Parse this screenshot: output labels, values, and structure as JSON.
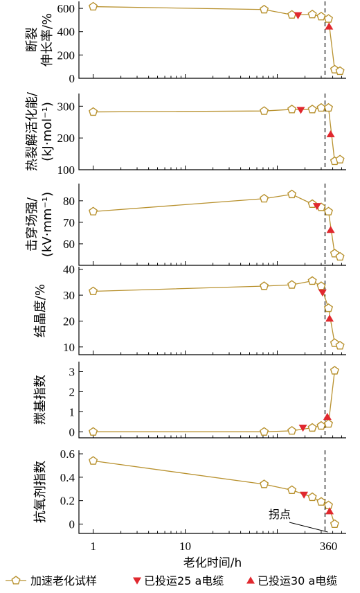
{
  "chart_data": {
    "type": "line",
    "x_scale": "log",
    "x_ticks": [
      1,
      10,
      360
    ],
    "x_tick_labels": [
      "1",
      "10",
      "360"
    ],
    "x_range": [
      0.7,
      560
    ],
    "xlabel": "老化时间/h",
    "inflection_x": 330,
    "annotation": "拐点",
    "legend": [
      {
        "name": "加速老化试样",
        "marker": "pentagon",
        "color": "#b8912e"
      },
      {
        "name": "已投运25 a电缆",
        "marker": "triangle-down",
        "color": "#e0282e"
      },
      {
        "name": "已投运30 a电缆",
        "marker": "triangle-up",
        "color": "#e0282e"
      }
    ],
    "panels": [
      {
        "ylabel_lines": [
          "断裂",
          "伸长率/%"
        ],
        "ylim": [
          0,
          660
        ],
        "yticks": [
          0,
          200,
          400,
          600
        ],
        "accelerated": {
          "x": [
            1,
            72,
            144,
            240,
            300,
            360,
            420,
            480
          ],
          "y": [
            615,
            590,
            545,
            548,
            530,
            510,
            75,
            62
          ]
        },
        "in_service_25a": [
          {
            "x": 168,
            "y": 540
          }
        ],
        "in_service_30a": [
          {
            "x": 365,
            "y": 445
          }
        ]
      },
      {
        "ylabel_lines": [
          "热裂解活化能/",
          "(kJ·mol⁻¹)"
        ],
        "ylim": [
          100,
          340
        ],
        "yticks": [
          100,
          200,
          300
        ],
        "accelerated": {
          "x": [
            1,
            72,
            144,
            240,
            300,
            360,
            420,
            480
          ],
          "y": [
            282,
            285,
            290,
            290,
            295,
            295,
            127,
            132
          ]
        },
        "in_service_25a": [
          {
            "x": 180,
            "y": 288
          }
        ],
        "in_service_30a": [
          {
            "x": 380,
            "y": 212
          }
        ]
      },
      {
        "ylabel_lines": [
          "击穿场强/",
          "(kV·mm⁻¹)"
        ],
        "ylim": [
          50,
          88
        ],
        "yticks": [
          60,
          70,
          80
        ],
        "accelerated": {
          "x": [
            1,
            72,
            144,
            240,
            300,
            360,
            420,
            480
          ],
          "y": [
            75,
            81,
            83,
            78.5,
            77,
            75,
            55.5,
            54
          ]
        },
        "in_service_25a": [
          {
            "x": 270,
            "y": 77.5
          }
        ],
        "in_service_30a": [
          {
            "x": 380,
            "y": 66.5
          }
        ]
      },
      {
        "ylabel_lines": [
          "结晶度/%"
        ],
        "ylim": [
          7,
          41
        ],
        "yticks": [
          10,
          20,
          30,
          40
        ],
        "accelerated": {
          "x": [
            1,
            72,
            144,
            240,
            300,
            360,
            420,
            480
          ],
          "y": [
            31.5,
            33.5,
            34,
            35.5,
            33.5,
            25,
            11.5,
            10.5
          ]
        },
        "in_service_25a": [
          {
            "x": 310,
            "y": 31
          }
        ],
        "in_service_30a": [
          {
            "x": 370,
            "y": 21
          }
        ]
      },
      {
        "ylabel_lines": [
          "羰基指数"
        ],
        "ylim": [
          -0.3,
          3.5
        ],
        "yticks": [
          0,
          1,
          2,
          3
        ],
        "accelerated": {
          "x": [
            1,
            72,
            144,
            240,
            300,
            360,
            420
          ],
          "y": [
            0,
            0,
            0.05,
            0.2,
            0.3,
            0.4,
            3.05
          ]
        },
        "in_service_25a": [
          {
            "x": 190,
            "y": 0.2
          }
        ],
        "in_service_30a": [
          {
            "x": 350,
            "y": 0.75
          }
        ]
      },
      {
        "ylabel_lines": [
          "抗氧剂指数"
        ],
        "ylim": [
          -0.08,
          0.63
        ],
        "yticks": [
          0,
          0.2,
          0.4,
          0.6
        ],
        "ytick_labels": [
          "0",
          "0.2",
          "0.4",
          "0.6"
        ],
        "accelerated": {
          "x": [
            1,
            72,
            144,
            240,
            300,
            360,
            420
          ],
          "y": [
            0.54,
            0.34,
            0.29,
            0.23,
            0.19,
            0.16,
            0
          ]
        },
        "in_service_25a": [
          {
            "x": 195,
            "y": 0.25
          }
        ],
        "in_service_30a": [
          {
            "x": 370,
            "y": 0.11
          }
        ]
      }
    ]
  }
}
